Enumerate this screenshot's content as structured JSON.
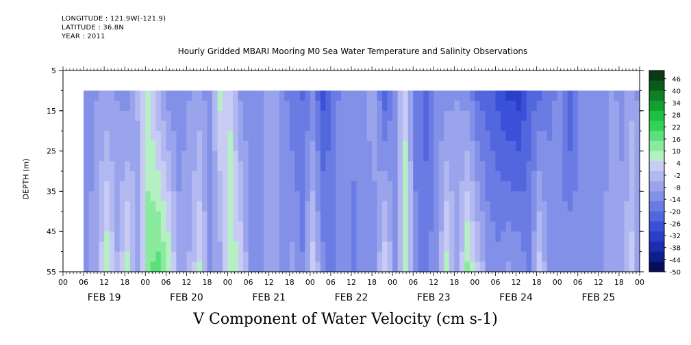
{
  "header": {
    "longitude": "LONGITUDE : 121.9W(-121.9)",
    "latitude": "LATITUDE : 36.8N",
    "year": "YEAR : 2011"
  },
  "title": "Hourly Gridded MBARI Mooring M0 Sea Water Temperature and Salinity Observations",
  "bottom_title": "V Component of Water Velocity (cm s-1)",
  "chart_data": {
    "type": "heatmap",
    "title": "Hourly Gridded MBARI Mooring M0 Sea Water Temperature and Salinity Observations",
    "xlabel": "",
    "ylabel": "DEPTH (m)",
    "x_range": [
      "2011-02-19T00:00",
      "2011-02-26T00:00"
    ],
    "x_data_start": "2011-02-19T06:00",
    "y_range": [
      5,
      55
    ],
    "y_ticks": [
      5,
      15,
      25,
      35,
      45,
      55
    ],
    "y_inverted": true,
    "depth_data_top": 10,
    "x_hour_ticks": [
      "00",
      "06",
      "12",
      "18",
      "00",
      "06",
      "12",
      "18",
      "00",
      "06",
      "12",
      "18",
      "00",
      "06",
      "12",
      "18",
      "00",
      "06",
      "12",
      "18",
      "00",
      "06",
      "12",
      "18",
      "00",
      "06",
      "12",
      "18",
      "00"
    ],
    "x_day_labels": [
      "FEB 19",
      "FEB 20",
      "FEB 21",
      "FEB 22",
      "FEB 23",
      "FEB 24",
      "FEB 25"
    ],
    "colorbar": {
      "range": [
        -50,
        50
      ],
      "labels": [
        46,
        40,
        34,
        28,
        22,
        16,
        10,
        4,
        -2,
        -8,
        -14,
        -20,
        -26,
        -32,
        -38,
        -44,
        -50
      ],
      "colors": [
        "#0a3a14",
        "#0c5a1c",
        "#108026",
        "#12a030",
        "#1ec040",
        "#32d25a",
        "#5ae07a",
        "#8aea9e",
        "#b4f0c2",
        "#c8ccf4",
        "#b2b8f0",
        "#9aa4ec",
        "#8290e8",
        "#6a7ce4",
        "#5266de",
        "#3a50d8",
        "#2a3ec8",
        "#1c2eb0",
        "#101e8c",
        "#060e5c"
      ]
    },
    "series_profile": {
      "hours": [
        6,
        9,
        12,
        15,
        18,
        21,
        24,
        27,
        30,
        33,
        36,
        39,
        42,
        45,
        48,
        51,
        54,
        57,
        60,
        63,
        66,
        69,
        72,
        75,
        78,
        81,
        84,
        87,
        90,
        93,
        96,
        99,
        102,
        105,
        108,
        111,
        114,
        117,
        120,
        123,
        126,
        129,
        132,
        135,
        138,
        141,
        144,
        147,
        150,
        153,
        156,
        159,
        162,
        165,
        168
      ],
      "surface": [
        -14,
        -10,
        -8,
        -10,
        -12,
        -4,
        6,
        -4,
        -12,
        -14,
        -10,
        -8,
        -12,
        6,
        4,
        -10,
        -14,
        -12,
        -6,
        -12,
        -18,
        -20,
        -14,
        -26,
        -18,
        -12,
        -14,
        -10,
        -8,
        -22,
        -12,
        4,
        -16,
        -22,
        -14,
        -12,
        -10,
        -12,
        -20,
        -22,
        -26,
        -30,
        -32,
        -22,
        -20,
        -16,
        -14,
        -24,
        -14,
        -12,
        -14,
        -8,
        -12,
        -6,
        -14
      ],
      "bottom": [
        -10,
        -6,
        10,
        -4,
        8,
        -10,
        14,
        18,
        10,
        -6,
        -4,
        6,
        -10,
        -8,
        10,
        4,
        -12,
        -10,
        -6,
        -12,
        -8,
        -14,
        4,
        -12,
        -18,
        -10,
        -16,
        -14,
        -12,
        6,
        -10,
        8,
        -14,
        -16,
        -12,
        8,
        -8,
        12,
        2,
        -10,
        -12,
        -8,
        -10,
        -16,
        4,
        -12,
        -14,
        -10,
        -12,
        -14,
        -10,
        -8,
        -6,
        2,
        -14
      ]
    }
  }
}
